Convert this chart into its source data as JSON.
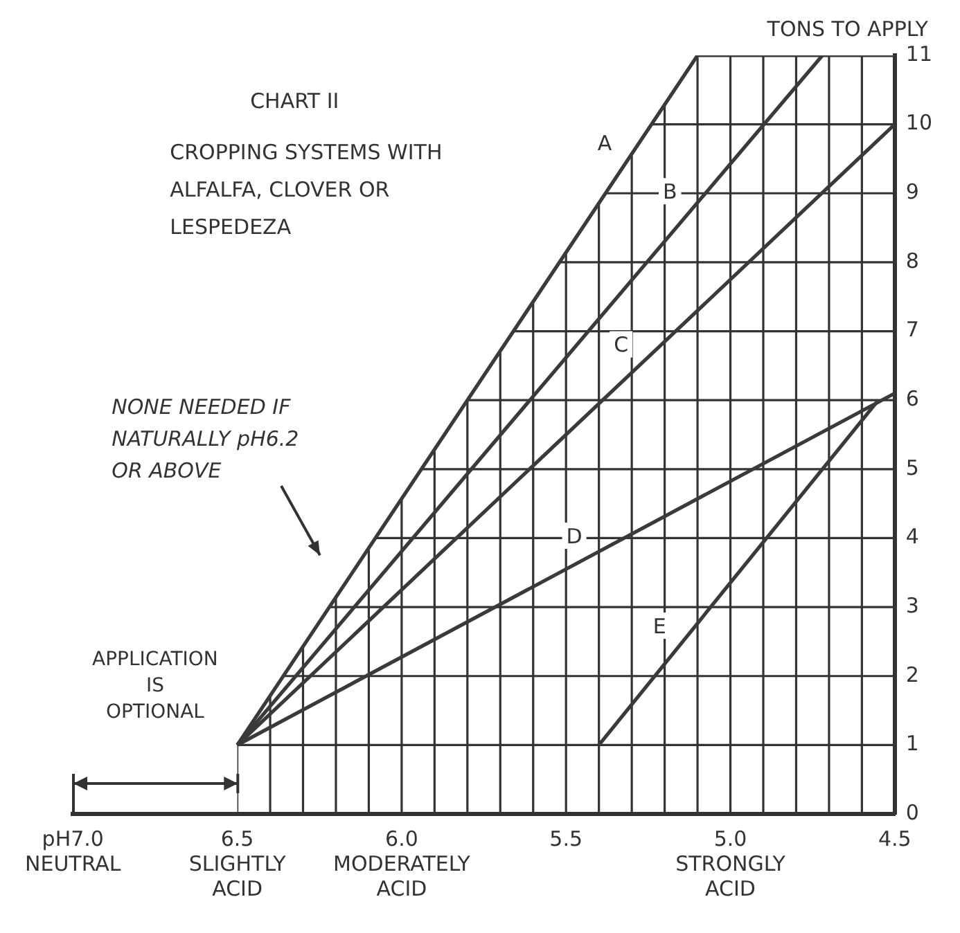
{
  "chart_data": {
    "type": "line",
    "title": "CHART II",
    "subtitle": "CROPPING SYSTEMS WITH\nALFALFA, CLOVER OR\nLESPEDEZA",
    "ylabel": "TONS TO APPLY",
    "annotations": [
      "NONE NEEDED IF\nNATURALLY pH6.2\nOR ABOVE",
      "APPLICATION\nIS\nOPTIONAL"
    ],
    "series": [
      {
        "name": "A",
        "color": "#3a3a3a",
        "x": [
          6.5,
          5.1,
          4.5
        ],
        "values": [
          1,
          11,
          11
        ]
      },
      {
        "name": "B",
        "color": "#3a3a3a",
        "x": [
          6.5,
          4.72
        ],
        "values": [
          1,
          11
        ]
      },
      {
        "name": "C",
        "color": "#3a3a3a",
        "x": [
          6.5,
          4.5
        ],
        "values": [
          1,
          10
        ]
      },
      {
        "name": "D",
        "color": "#3a3a3a",
        "x": [
          6.5,
          4.5
        ],
        "values": [
          1,
          6.1
        ]
      },
      {
        "name": "E",
        "color": "#3a3a3a",
        "x": [
          5.4,
          4.55
        ],
        "values": [
          1,
          6
        ]
      }
    ],
    "xlim": [
      7.0,
      4.5
    ],
    "xticks": [
      {
        "value": 7.0,
        "label": "pH7.0\nNEUTRAL"
      },
      {
        "value": 6.5,
        "label": "6.5\nSLIGHTLY\nACID"
      },
      {
        "value": 6.4,
        "label": null
      },
      {
        "value": 6.3,
        "label": null
      },
      {
        "value": 6.2,
        "label": null
      },
      {
        "value": 6.1,
        "label": null
      },
      {
        "value": 6.0,
        "label": "6.0\nMODERATELY\nACID"
      },
      {
        "value": 5.9,
        "label": null
      },
      {
        "value": 5.8,
        "label": null
      },
      {
        "value": 5.7,
        "label": null
      },
      {
        "value": 5.6,
        "label": null
      },
      {
        "value": 5.5,
        "label": "5.5"
      },
      {
        "value": 5.4,
        "label": null
      },
      {
        "value": 5.3,
        "label": null
      },
      {
        "value": 5.2,
        "label": null
      },
      {
        "value": 5.1,
        "label": null
      },
      {
        "value": 5.0,
        "label": "5.0\nSTRONGLY\nACID"
      },
      {
        "value": 4.9,
        "label": null
      },
      {
        "value": 4.8,
        "label": null
      },
      {
        "value": 4.7,
        "label": null
      },
      {
        "value": 4.6,
        "label": null
      },
      {
        "value": 4.5,
        "label": "4.5"
      }
    ],
    "ylim": [
      0,
      11
    ],
    "yticks": [
      0,
      1,
      2,
      3,
      4,
      5,
      6,
      7,
      8,
      9,
      10,
      11
    ],
    "grid": true,
    "legend": false,
    "marker": "none",
    "line_style": "solid"
  }
}
